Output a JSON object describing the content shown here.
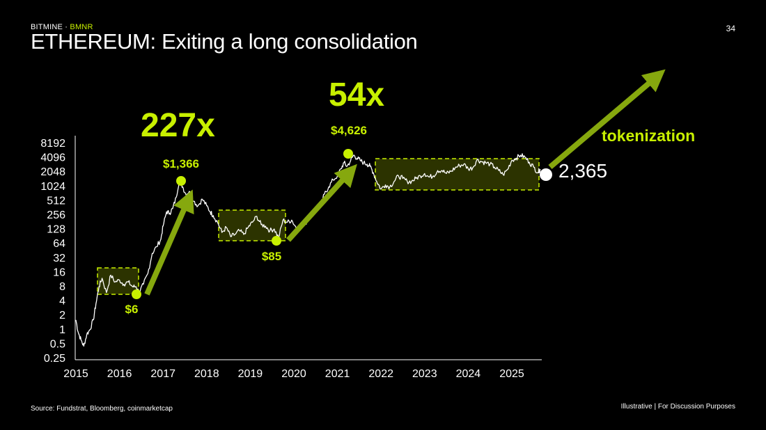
{
  "header": {
    "brand_name": "BITMINE",
    "brand_separator": " · ",
    "brand_ticker": "BMNR",
    "title": "ETHEREUM: Exiting a long consolidation",
    "page_number": "34"
  },
  "footer": {
    "source": "Source: Fundstrat, Bloomberg, coinmarketcap",
    "disclaimer": "Illustrative  |  For Discussion Purposes"
  },
  "colors": {
    "accent": "#c8f000",
    "arrow": "#86a80e",
    "band_fill": "#2c3300",
    "price_line": "#ffffff",
    "background": "#000000"
  },
  "chart_data": {
    "type": "line",
    "title": "",
    "xlabel": "",
    "ylabel": "",
    "y_scale": "log2",
    "ylim": [
      0.25,
      8192
    ],
    "xlim": [
      2015.0,
      2025.7
    ],
    "x_ticks": [
      "2015",
      "2016",
      "2017",
      "2018",
      "2019",
      "2020",
      "2021",
      "2022",
      "2023",
      "2024",
      "2025"
    ],
    "y_ticks": [
      "0.25",
      "0.5",
      "1",
      "2",
      "4",
      "8",
      "16",
      "32",
      "64",
      "128",
      "256",
      "512",
      "1024",
      "2048",
      "4096",
      "8192"
    ],
    "grid": false,
    "series": [
      {
        "x": [
          2015.0,
          2015.05,
          2015.12,
          2015.18,
          2015.25,
          2015.32,
          2015.4,
          2015.46,
          2015.53,
          2015.6,
          2015.7,
          2015.8,
          2015.9,
          2016.0,
          2016.1,
          2016.2,
          2016.3,
          2016.38,
          2016.45,
          2016.55,
          2016.65,
          2016.75,
          2016.85,
          2016.95,
          2017.0,
          2017.08,
          2017.15,
          2017.22,
          2017.3,
          2017.37,
          2017.45,
          2017.52,
          2017.6,
          2017.7,
          2017.8,
          2017.9,
          2018.0,
          2018.08,
          2018.15,
          2018.25,
          2018.35,
          2018.45,
          2018.55,
          2018.65,
          2018.75,
          2018.85,
          2018.95,
          2019.05,
          2019.15,
          2019.25,
          2019.35,
          2019.45,
          2019.55,
          2019.65,
          2019.75,
          2019.85,
          2019.95,
          2020.05,
          2020.15,
          2020.22,
          2020.3,
          2020.4,
          2020.5,
          2020.6,
          2020.7,
          2020.8,
          2020.9,
          2021.0,
          2021.08,
          2021.15,
          2021.22,
          2021.3,
          2021.37,
          2021.45,
          2021.52,
          2021.6,
          2021.68,
          2021.75,
          2021.82,
          2021.9,
          2022.0,
          2022.1,
          2022.2,
          2022.3,
          2022.4,
          2022.5,
          2022.6,
          2022.7,
          2022.8,
          2022.9,
          2023.0,
          2023.1,
          2023.2,
          2023.3,
          2023.4,
          2023.5,
          2023.6,
          2023.7,
          2023.8,
          2023.9,
          2024.0,
          2024.1,
          2024.2,
          2024.3,
          2024.4,
          2024.5,
          2024.6,
          2024.7,
          2024.8,
          2024.9,
          2025.0,
          2025.1,
          2025.2,
          2025.3,
          2025.4,
          2025.5,
          2025.6,
          2025.65
        ],
        "y": [
          1.6,
          0.9,
          0.6,
          0.45,
          0.8,
          1.0,
          1.6,
          3.5,
          8,
          12,
          6,
          14,
          10,
          11,
          9,
          10,
          8,
          8,
          6,
          9,
          15,
          40,
          55,
          80,
          150,
          300,
          280,
          350,
          600,
          1366,
          1000,
          700,
          800,
          500,
          400,
          550,
          400,
          300,
          250,
          180,
          110,
          140,
          90,
          100,
          120,
          100,
          140,
          180,
          240,
          160,
          150,
          120,
          130,
          85,
          200,
          180,
          200,
          140,
          150,
          160,
          190,
          260,
          350,
          380,
          700,
          1000,
          1400,
          1700,
          2400,
          3200,
          2700,
          3500,
          4626,
          4000,
          3600,
          3200,
          3000,
          2700,
          2000,
          1300,
          900,
          1100,
          1000,
          1300,
          1700,
          1500,
          1300,
          1300,
          1500,
          1700,
          1900,
          1600,
          1700,
          2200,
          2200,
          1900,
          2100,
          2500,
          2800,
          3000,
          2400,
          2500,
          3700,
          3400,
          3200,
          3000,
          2600,
          2200,
          1800,
          2300,
          3600,
          4000,
          4626,
          4200,
          3300,
          2600,
          2000,
          2365
        ]
      }
    ],
    "annotations": {
      "multiples": [
        "227x",
        "54x"
      ],
      "price_labels": [
        "$6",
        "$1,366",
        "$85",
        "$4,626"
      ],
      "current_value": "2,365",
      "trend_label": "tokenization"
    }
  }
}
